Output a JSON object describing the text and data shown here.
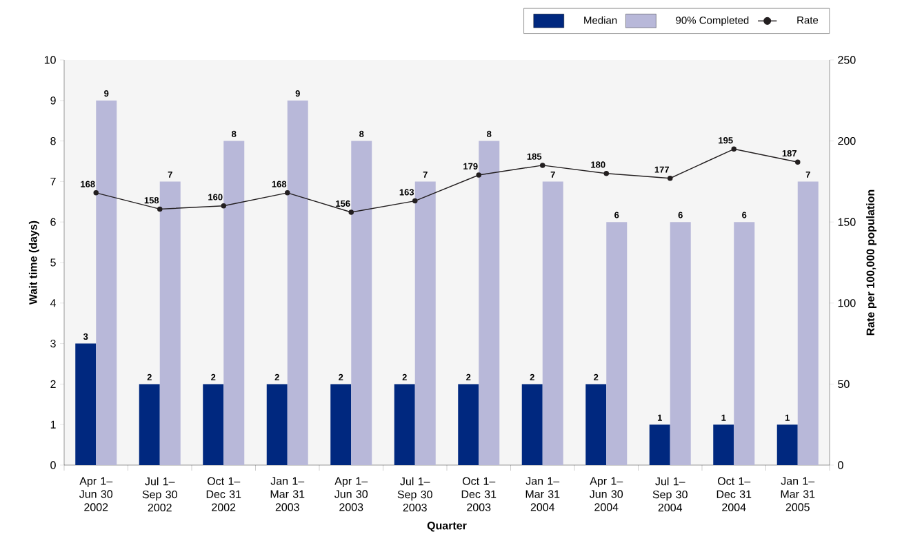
{
  "chart_data": {
    "type": "bar",
    "categories": [
      "Apr 1–Jun 30 2002",
      "Jul 1–Sep 30 2002",
      "Oct 1–Dec 31 2002",
      "Jan 1–Mar 31 2003",
      "Apr 1–Jun 30 2003",
      "Jul 1–Sep 30 2003",
      "Oct 1–Dec 31 2003",
      "Jan 1–Mar 31 2004",
      "Apr 1–Jun 30 2004",
      "Jul 1–Sep 30 2004",
      "Oct 1–Dec 31 2004",
      "Jan 1–Mar 31 2005"
    ],
    "series": [
      {
        "name": "Median",
        "color": "#00287f",
        "values": [
          3,
          2,
          2,
          2,
          2,
          2,
          2,
          2,
          2,
          1,
          1,
          1
        ]
      },
      {
        "name": "90% Completed",
        "color": "#b8b8d9",
        "values": [
          9,
          7,
          8,
          9,
          8,
          7,
          8,
          7,
          6,
          6,
          6,
          7
        ]
      },
      {
        "name": "Rate",
        "type": "line",
        "axis": "y2",
        "color": "#231f20",
        "marker": "circle",
        "values": [
          168,
          158,
          160,
          168,
          156,
          163,
          179,
          185,
          180,
          177,
          195,
          187
        ]
      }
    ],
    "xlabel": "Quarter",
    "ylabel": "Wait time (days)",
    "y2label": "Rate per 100,000 population",
    "ylim": [
      0,
      10
    ],
    "yticks": [
      0,
      1,
      2,
      3,
      4,
      5,
      6,
      7,
      8,
      9,
      10
    ],
    "y2lim": [
      0,
      250
    ],
    "y2ticks": [
      0,
      50,
      100,
      150,
      200,
      250
    ],
    "legend": "top right",
    "data_labels": true
  }
}
